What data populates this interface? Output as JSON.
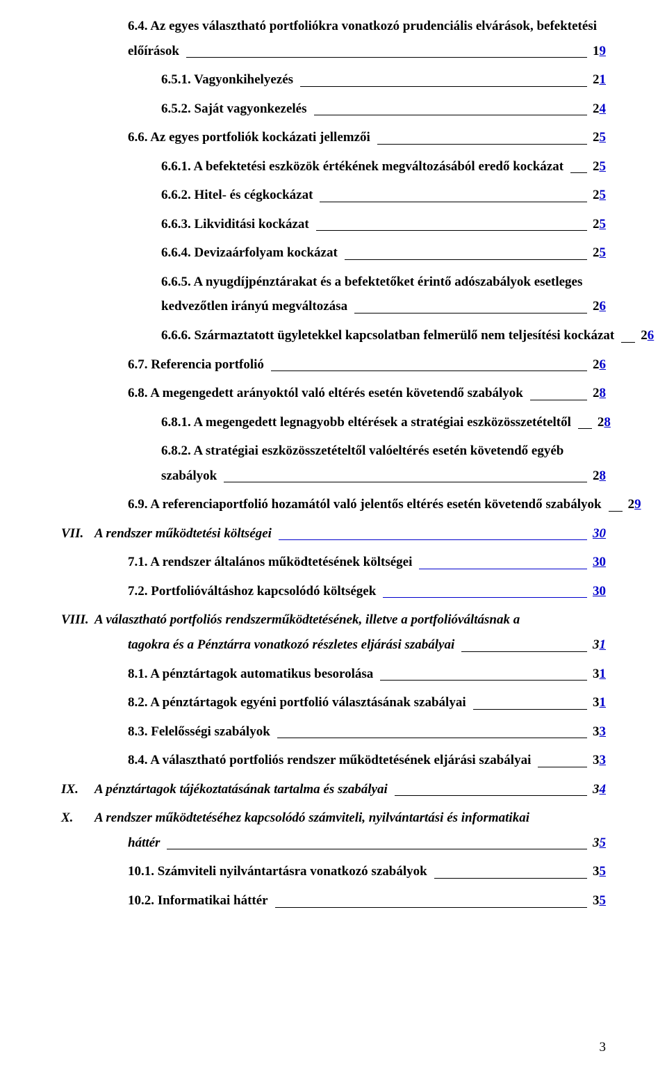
{
  "colors": {
    "text": "#000000",
    "link": "#0000cc",
    "bg": "#ffffff",
    "leader": "#000000"
  },
  "typography": {
    "font_family": "Times New Roman",
    "base_size_pt": 14,
    "weight": "bold"
  },
  "entries": [
    {
      "indent": 2,
      "italic": false,
      "roman": "",
      "title_lines": [
        "6.4. Az egyes választható portfoliókra vonatkozó prudenciális elvárások, befektetési",
        "előírások"
      ],
      "page_black": "1",
      "page_blue": "9",
      "leader_blue": false
    },
    {
      "indent": 3,
      "italic": false,
      "roman": "",
      "title_lines": [
        "6.5.1. Vagyonkihelyezés"
      ],
      "page_black": "2",
      "page_blue": "1",
      "leader_blue": false
    },
    {
      "indent": 3,
      "italic": false,
      "roman": "",
      "title_lines": [
        "6.5.2. Saját vagyonkezelés"
      ],
      "page_black": "2",
      "page_blue": "4",
      "leader_blue": false
    },
    {
      "indent": 2,
      "italic": false,
      "roman": "",
      "title_lines": [
        "6.6. Az egyes portfoliók kockázati jellemzői"
      ],
      "page_black": "2",
      "page_blue": "5",
      "leader_blue": false
    },
    {
      "indent": 3,
      "italic": false,
      "roman": "",
      "title_lines": [
        "6.6.1. A befektetési eszközök értékének megváltozásából eredő kockázat"
      ],
      "page_black": "2",
      "page_blue": "5",
      "leader_blue": false
    },
    {
      "indent": 3,
      "italic": false,
      "roman": "",
      "title_lines": [
        "6.6.2. Hitel- és cégkockázat"
      ],
      "page_black": "2",
      "page_blue": "5",
      "leader_blue": false
    },
    {
      "indent": 3,
      "italic": false,
      "roman": "",
      "title_lines": [
        "6.6.3. Likviditási kockázat"
      ],
      "page_black": "2",
      "page_blue": "5",
      "leader_blue": false
    },
    {
      "indent": 3,
      "italic": false,
      "roman": "",
      "title_lines": [
        "6.6.4. Devizaárfolyam kockázat"
      ],
      "page_black": "2",
      "page_blue": "5",
      "leader_blue": false
    },
    {
      "indent": 3,
      "italic": false,
      "roman": "",
      "title_lines": [
        "6.6.5. A nyugdíjpénztárakat és a befektetőket érintő adószabályok esetleges",
        "kedvezőtlen irányú megváltozása"
      ],
      "page_black": "2",
      "page_blue": "6",
      "leader_blue": false
    },
    {
      "indent": 3,
      "italic": false,
      "roman": "",
      "title_lines": [
        "6.6.6. Származtatott ügyletekkel kapcsolatban felmerülő nem teljesítési kockázat"
      ],
      "page_black": "2",
      "page_blue": "6",
      "leader_blue": false
    },
    {
      "indent": 2,
      "italic": false,
      "roman": "",
      "title_lines": [
        "6.7. Referencia portfolió"
      ],
      "page_black": "2",
      "page_blue": "6",
      "leader_blue": false
    },
    {
      "indent": 2,
      "italic": false,
      "roman": "",
      "title_lines": [
        "6.8. A megengedett arányoktól való eltérés esetén követendő szabályok"
      ],
      "page_black": "2",
      "page_blue": "8",
      "leader_blue": false
    },
    {
      "indent": 3,
      "italic": false,
      "roman": "",
      "title_lines": [
        "6.8.1. A megengedett legnagyobb eltérések a stratégiai eszközösszetételtől"
      ],
      "page_black": "2",
      "page_blue": "8",
      "leader_blue": false
    },
    {
      "indent": 3,
      "italic": false,
      "roman": "",
      "title_lines": [
        "6.8.2. A stratégiai eszközösszetételtől valóeltérés esetén követendő egyéb",
        "szabályok"
      ],
      "page_black": "2",
      "page_blue": "8",
      "leader_blue": false
    },
    {
      "indent": 2,
      "italic": false,
      "roman": "",
      "title_lines": [
        "6.9. A referenciaportfolió hozamától való jelentős eltérés esetén követendő szabályok"
      ],
      "page_black": "2",
      "page_blue": "9",
      "leader_blue": false
    },
    {
      "indent": 0,
      "italic": true,
      "roman": "VII.",
      "title_lines": [
        "A rendszer működtetési költségei"
      ],
      "page_black": "",
      "page_blue": "30",
      "leader_blue": true
    },
    {
      "indent": 2,
      "italic": false,
      "roman": "",
      "title_lines": [
        "7.1. A rendszer általános működtetésének költségei"
      ],
      "page_black": "",
      "page_blue": "30",
      "leader_blue": true
    },
    {
      "indent": 2,
      "italic": false,
      "roman": "",
      "title_lines": [
        "7.2. Portfolióváltáshoz kapcsolódó költségek"
      ],
      "page_black": "",
      "page_blue": "30",
      "leader_blue": true
    },
    {
      "indent": 0,
      "italic": true,
      "roman": "VIII.",
      "title_lines": [
        "A választható portfoliós rendszerműködtetésének, illetve a portfolióváltásnak a",
        "tagokra és a Pénztárra vonatkozó részletes eljárási szabályai"
      ],
      "page_black": "3",
      "page_blue": "1",
      "leader_blue": false
    },
    {
      "indent": 2,
      "italic": false,
      "roman": "",
      "title_lines": [
        "8.1. A pénztártagok automatikus besorolása"
      ],
      "page_black": "3",
      "page_blue": "1",
      "leader_blue": false
    },
    {
      "indent": 2,
      "italic": false,
      "roman": "",
      "title_lines": [
        "8.2. A pénztártagok egyéni portfolió választásának szabályai"
      ],
      "page_black": "3",
      "page_blue": "1",
      "leader_blue": false
    },
    {
      "indent": 2,
      "italic": false,
      "roman": "",
      "title_lines": [
        "8.3. Felelősségi szabályok"
      ],
      "page_black": "3",
      "page_blue": "3",
      "leader_blue": false
    },
    {
      "indent": 2,
      "italic": false,
      "roman": "",
      "title_lines": [
        "8.4. A választható portfoliós rendszer működtetésének eljárási szabályai"
      ],
      "page_black": "3",
      "page_blue": "3",
      "leader_blue": false
    },
    {
      "indent": 0,
      "italic": true,
      "roman": "IX.",
      "title_lines": [
        "A pénztártagok tájékoztatásának tartalma és szabályai"
      ],
      "page_black": "3",
      "page_blue": "4",
      "leader_blue": false
    },
    {
      "indent": 0,
      "italic": true,
      "roman": "X.",
      "title_lines": [
        "A rendszer működtetéséhez kapcsolódó számviteli, nyilvántartási és informatikai",
        "háttér"
      ],
      "page_black": "3",
      "page_blue": "5",
      "leader_blue": false
    },
    {
      "indent": 2,
      "italic": false,
      "roman": "",
      "title_lines": [
        "10.1. Számviteli nyilvántartásra vonatkozó szabályok"
      ],
      "page_black": "3",
      "page_blue": "5",
      "leader_blue": false
    },
    {
      "indent": 2,
      "italic": false,
      "roman": "",
      "title_lines": [
        "10.2. Informatikai háttér"
      ],
      "page_black": "3",
      "page_blue": "5",
      "leader_blue": false
    }
  ],
  "footer_page": "3"
}
